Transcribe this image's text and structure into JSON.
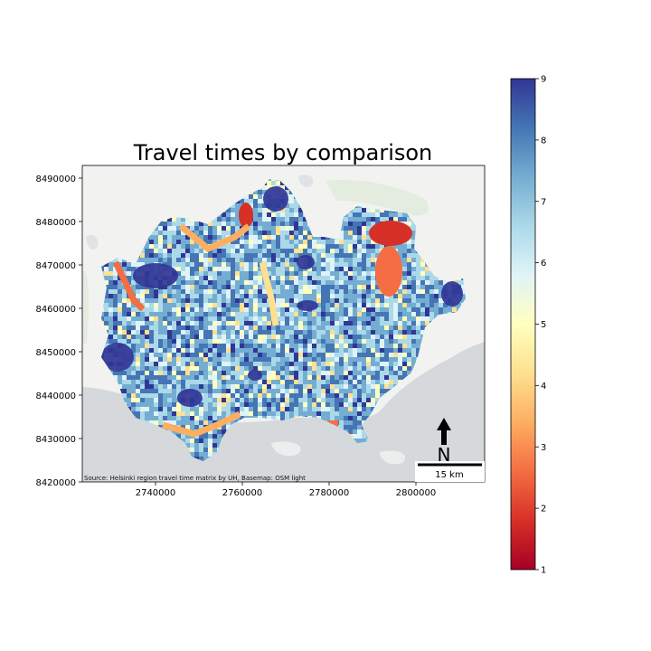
{
  "map": {
    "title": "Travel times by comparison",
    "source_note": "Source: Helsinki region travel time matrix by UH, Basemap: OSM light",
    "north_label": "N",
    "scale_bar_label": "15 km",
    "x_ticks": [
      "2740000",
      "2760000",
      "2780000",
      "2800000"
    ],
    "y_ticks": [
      "8490000",
      "8480000",
      "8470000",
      "8460000",
      "8450000",
      "8440000",
      "8430000",
      "8420000"
    ],
    "colormap": "RdYlBu",
    "colors": {
      "land": "#f2f3f1",
      "water": "#d5d9dc",
      "green_areas": "#e4ece0"
    }
  },
  "colorbar": {
    "min": 1,
    "max": 9,
    "ticks": [
      "9",
      "8",
      "7",
      "6",
      "5",
      "4",
      "3",
      "2",
      "1"
    ]
  }
}
